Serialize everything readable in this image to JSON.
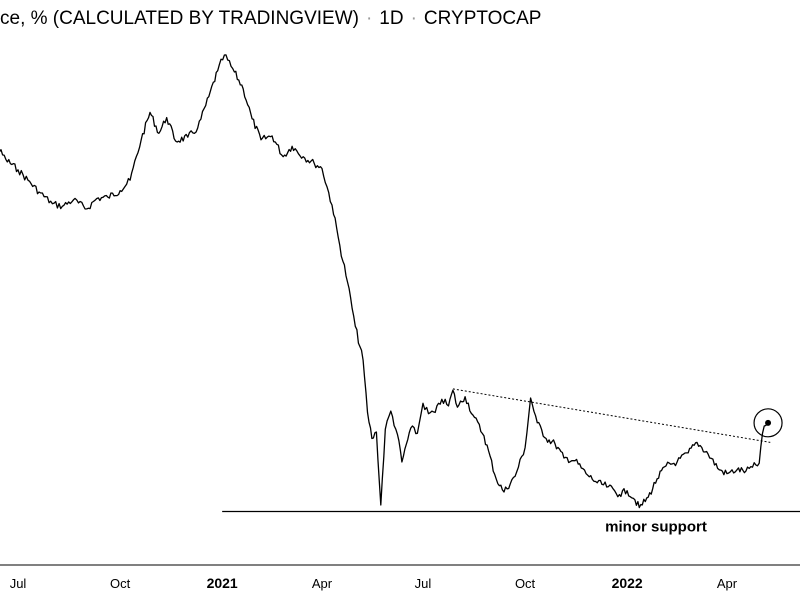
{
  "header": {
    "title": "ce, % (CALCULATED BY TRADINGVIEW)",
    "interval": "1D",
    "source": "CRYPTOCAP"
  },
  "chart_data": {
    "type": "line",
    "grid": false,
    "colors": {
      "line": "#000000",
      "background": "#ffffff"
    },
    "x_ticks": [
      {
        "label": "Jul",
        "x": "2020-07-01",
        "major": false
      },
      {
        "label": "Oct",
        "x": "2020-10-01",
        "major": false
      },
      {
        "label": "2021",
        "x": "2021-01-01",
        "major": true
      },
      {
        "label": "Apr",
        "x": "2021-04-01",
        "major": false
      },
      {
        "label": "Jul",
        "x": "2021-07-01",
        "major": false
      },
      {
        "label": "Oct",
        "x": "2021-10-01",
        "major": false
      },
      {
        "label": "2022",
        "x": "2022-01-01",
        "major": true
      },
      {
        "label": "Apr",
        "x": "2022-04-01",
        "major": false
      }
    ],
    "series": [
      {
        "points": [
          [
            "2020-05-24",
            65.6
          ],
          [
            "2020-06-01",
            65.9
          ],
          [
            "2020-06-10",
            65.2
          ],
          [
            "2020-06-20",
            64.0
          ],
          [
            "2020-07-01",
            63.2
          ],
          [
            "2020-07-10",
            62.4
          ],
          [
            "2020-07-20",
            61.5
          ],
          [
            "2020-08-01",
            60.6
          ],
          [
            "2020-08-10",
            60.4
          ],
          [
            "2020-08-20",
            60.9
          ],
          [
            "2020-09-01",
            60.2
          ],
          [
            "2020-09-10",
            61.0
          ],
          [
            "2020-09-20",
            61.1
          ],
          [
            "2020-10-01",
            61.6
          ],
          [
            "2020-10-10",
            62.4
          ],
          [
            "2020-10-20",
            65.5
          ],
          [
            "2020-10-28",
            67.6
          ],
          [
            "2020-11-05",
            66.0
          ],
          [
            "2020-11-12",
            67.2
          ],
          [
            "2020-11-20",
            65.4
          ],
          [
            "2020-12-01",
            65.7
          ],
          [
            "2020-12-10",
            66.4
          ],
          [
            "2020-12-20",
            68.8
          ],
          [
            "2020-12-28",
            70.8
          ],
          [
            "2021-01-03",
            72.0
          ],
          [
            "2021-01-12",
            70.7
          ],
          [
            "2021-01-20",
            69.4
          ],
          [
            "2021-01-28",
            67.1
          ],
          [
            "2021-02-05",
            65.5
          ],
          [
            "2021-02-15",
            65.8
          ],
          [
            "2021-02-25",
            64.2
          ],
          [
            "2021-03-05",
            65.0
          ],
          [
            "2021-03-15",
            64.2
          ],
          [
            "2021-03-25",
            63.7
          ],
          [
            "2021-04-01",
            63.3
          ],
          [
            "2021-04-10",
            60.5
          ],
          [
            "2021-04-17",
            57.4
          ],
          [
            "2021-04-24",
            54.6
          ],
          [
            "2021-05-01",
            51.2
          ],
          [
            "2021-05-08",
            48.6
          ],
          [
            "2021-05-12",
            44.6
          ],
          [
            "2021-05-16",
            42.6
          ],
          [
            "2021-05-20",
            43.1
          ],
          [
            "2021-05-24",
            37.5
          ],
          [
            "2021-05-28",
            43.3
          ],
          [
            "2021-06-02",
            44.7
          ],
          [
            "2021-06-08",
            42.9
          ],
          [
            "2021-06-12",
            40.8
          ],
          [
            "2021-06-20",
            43.4
          ],
          [
            "2021-06-26",
            43.0
          ],
          [
            "2021-07-01",
            45.3
          ],
          [
            "2021-07-06",
            44.5
          ],
          [
            "2021-07-12",
            44.6
          ],
          [
            "2021-07-18",
            45.6
          ],
          [
            "2021-07-24",
            45.1
          ],
          [
            "2021-07-28",
            46.3
          ],
          [
            "2021-08-01",
            45.0
          ],
          [
            "2021-08-08",
            45.8
          ],
          [
            "2021-08-15",
            44.4
          ],
          [
            "2021-08-25",
            42.8
          ],
          [
            "2021-09-05",
            39.5
          ],
          [
            "2021-09-12",
            38.5
          ],
          [
            "2021-09-22",
            39.7
          ],
          [
            "2021-10-01",
            41.9
          ],
          [
            "2021-10-06",
            45.7
          ],
          [
            "2021-10-12",
            43.8
          ],
          [
            "2021-10-20",
            42.6
          ],
          [
            "2021-10-28",
            42.2
          ],
          [
            "2021-11-05",
            41.1
          ],
          [
            "2021-11-15",
            40.9
          ],
          [
            "2021-11-25",
            39.9
          ],
          [
            "2021-12-05",
            39.2
          ],
          [
            "2021-12-15",
            38.9
          ],
          [
            "2021-12-25",
            38.3
          ],
          [
            "2022-01-01",
            38.6
          ],
          [
            "2022-01-08",
            37.9
          ],
          [
            "2022-01-12",
            37.3
          ],
          [
            "2022-01-20",
            38.1
          ],
          [
            "2022-01-28",
            39.5
          ],
          [
            "2022-02-05",
            40.5
          ],
          [
            "2022-02-15",
            40.8
          ],
          [
            "2022-02-25",
            41.5
          ],
          [
            "2022-03-05",
            42.3
          ],
          [
            "2022-03-15",
            41.4
          ],
          [
            "2022-03-25",
            40.2
          ],
          [
            "2022-04-01",
            39.9
          ],
          [
            "2022-04-10",
            40.2
          ],
          [
            "2022-04-18",
            40.1
          ],
          [
            "2022-04-24",
            40.4
          ],
          [
            "2022-04-30",
            40.7
          ],
          [
            "2022-05-03",
            43.0
          ],
          [
            "2022-05-06",
            43.6
          ],
          [
            "2022-05-08",
            43.8
          ]
        ]
      }
    ],
    "annotations": [
      {
        "type": "trendline",
        "style": "dotted",
        "from": [
          "2021-07-28",
          46.4
        ],
        "to": [
          "2022-05-10",
          42.3
        ]
      },
      {
        "type": "hline",
        "style": "solid",
        "label": "minor support",
        "x_from": "2021-01-01",
        "x_to": "2022-05-20",
        "y": 37.0
      },
      {
        "type": "circle-marker",
        "at": [
          "2022-05-08",
          43.8
        ]
      }
    ]
  }
}
